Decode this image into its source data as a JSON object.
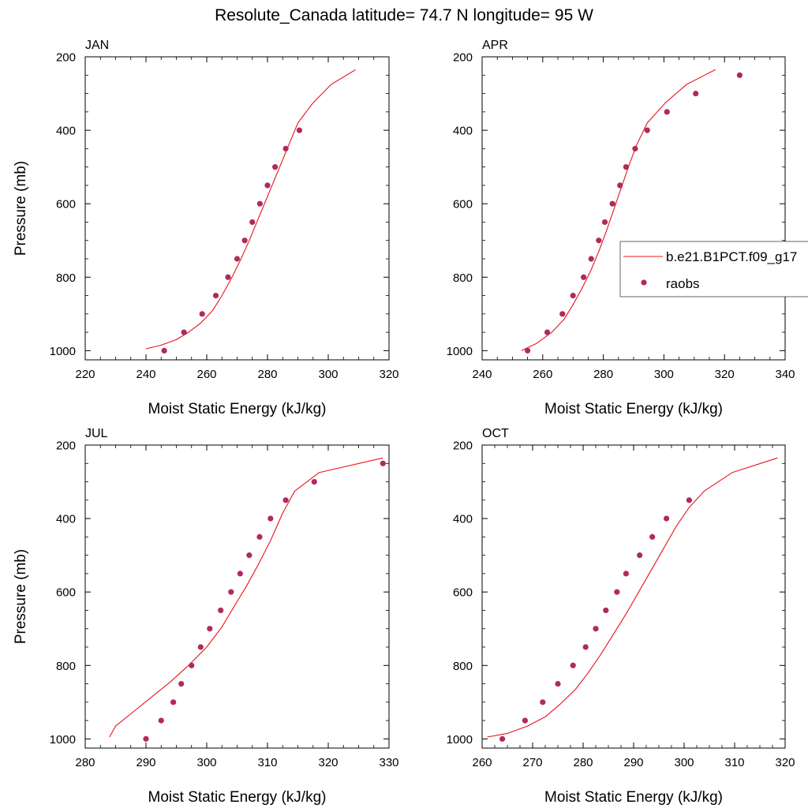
{
  "figure_title": "Resolute_Canada  latitude= 74.7 N longitude= 95 W",
  "colors": {
    "model_line": "#e8141b",
    "obs_marker": "#b02a5a",
    "axis": "#000000"
  },
  "legend": {
    "entries": [
      {
        "label": "b.e21.B1PCT.f09_g17",
        "kind": "line"
      },
      {
        "label": "raobs",
        "kind": "marker"
      }
    ]
  },
  "chart_data": [
    {
      "type": "line",
      "panel_label": "JAN",
      "xlabel": "Moist Static Energy (kJ/kg)",
      "ylabel": "Pressure (mb)",
      "xlim": [
        220,
        320
      ],
      "ylim": [
        1025,
        200
      ],
      "y_reversed": true,
      "xticks": [
        220,
        240,
        260,
        280,
        300,
        320
      ],
      "yticks": [
        200,
        400,
        600,
        800,
        1000
      ],
      "series": [
        {
          "name": "b.e21.B1PCT.f09_g17",
          "kind": "line",
          "x": [
            240,
            245,
            250,
            254,
            258,
            262,
            265,
            268,
            271,
            274,
            277,
            280,
            283,
            286,
            290,
            295,
            301,
            309
          ],
          "y": [
            995,
            985,
            970,
            950,
            925,
            890,
            850,
            805,
            755,
            700,
            640,
            580,
            520,
            460,
            380,
            325,
            275,
            235
          ]
        },
        {
          "name": "raobs",
          "kind": "scatter",
          "x": [
            246,
            252.5,
            258.5,
            263,
            267,
            270,
            272.5,
            275,
            277.5,
            280,
            282.5,
            286,
            290.5
          ],
          "y": [
            1000,
            950,
            900,
            850,
            800,
            750,
            700,
            650,
            600,
            550,
            500,
            450,
            400
          ]
        }
      ]
    },
    {
      "type": "line",
      "panel_label": "APR",
      "xlabel": "Moist Static Energy (kJ/kg)",
      "ylabel": "",
      "xlim": [
        240,
        340
      ],
      "ylim": [
        1025,
        200
      ],
      "y_reversed": true,
      "xticks": [
        240,
        260,
        280,
        300,
        320,
        340
      ],
      "yticks": [
        200,
        400,
        600,
        800,
        1000
      ],
      "series": [
        {
          "name": "b.e21.B1PCT.f09_g17",
          "kind": "line",
          "x": [
            253,
            258,
            263,
            267,
            270,
            273,
            276,
            278.5,
            281,
            283.5,
            286,
            288.5,
            291,
            294.5,
            300.5,
            307.5,
            317
          ],
          "y": [
            1000,
            980,
            950,
            915,
            875,
            830,
            780,
            730,
            675,
            615,
            555,
            495,
            440,
            380,
            325,
            275,
            235
          ]
        },
        {
          "name": "raobs",
          "kind": "scatter",
          "x": [
            255,
            261.5,
            266.5,
            270,
            273.5,
            276,
            278.5,
            280.5,
            283,
            285.5,
            287.5,
            290.5,
            294.5,
            301,
            310.5,
            325
          ],
          "y": [
            1000,
            950,
            900,
            850,
            800,
            750,
            700,
            650,
            600,
            550,
            500,
            450,
            400,
            350,
            300,
            250
          ]
        }
      ]
    },
    {
      "type": "line",
      "panel_label": "JUL",
      "xlabel": "Moist Static Energy (kJ/kg)",
      "ylabel": "Pressure (mb)",
      "xlim": [
        280,
        330
      ],
      "ylim": [
        1025,
        200
      ],
      "y_reversed": true,
      "xticks": [
        280,
        290,
        300,
        310,
        320,
        330
      ],
      "yticks": [
        200,
        400,
        600,
        800,
        1000
      ],
      "series": [
        {
          "name": "b.e21.B1PCT.f09_g17",
          "kind": "line",
          "x": [
            284,
            285,
            288,
            291,
            294,
            297,
            300,
            302.5,
            304.5,
            306.5,
            308.5,
            310.5,
            312.5,
            314.5,
            318.5,
            329
          ],
          "y": [
            995,
            965,
            925,
            885,
            845,
            800,
            750,
            695,
            640,
            585,
            525,
            460,
            385,
            325,
            275,
            235
          ]
        },
        {
          "name": "raobs",
          "kind": "scatter",
          "x": [
            290,
            292.5,
            294.5,
            295.8,
            297.5,
            299,
            300.5,
            302.3,
            304,
            305.5,
            307,
            308.7,
            310.5,
            313,
            317.7,
            329
          ],
          "y": [
            1000,
            950,
            900,
            850,
            800,
            750,
            700,
            650,
            600,
            550,
            500,
            450,
            400,
            350,
            300,
            250
          ]
        }
      ]
    },
    {
      "type": "line",
      "panel_label": "OCT",
      "xlabel": "Moist Static Energy (kJ/kg)",
      "ylabel": "",
      "xlim": [
        260,
        320
      ],
      "ylim": [
        1025,
        200
      ],
      "y_reversed": true,
      "xticks": [
        260,
        270,
        280,
        290,
        300,
        310,
        320
      ],
      "yticks": [
        200,
        400,
        600,
        800,
        1000
      ],
      "series": [
        {
          "name": "b.e21.B1PCT.f09_g17",
          "kind": "line",
          "x": [
            261,
            265,
            269,
            272.5,
            275.5,
            278.5,
            281,
            283.5,
            286,
            288.5,
            291,
            293.5,
            296,
            298.5,
            301,
            304,
            309.5,
            318.5
          ],
          "y": [
            995,
            985,
            965,
            940,
            905,
            865,
            820,
            770,
            715,
            660,
            600,
            540,
            480,
            420,
            370,
            325,
            275,
            235
          ]
        },
        {
          "name": "raobs",
          "kind": "scatter",
          "x": [
            264,
            268.5,
            272,
            275,
            278,
            280.5,
            282.5,
            284.5,
            286.7,
            288.5,
            291.2,
            293.7,
            296.5,
            301
          ],
          "y": [
            1000,
            950,
            900,
            850,
            800,
            750,
            700,
            650,
            600,
            550,
            500,
            450,
            400,
            350
          ]
        }
      ]
    }
  ]
}
